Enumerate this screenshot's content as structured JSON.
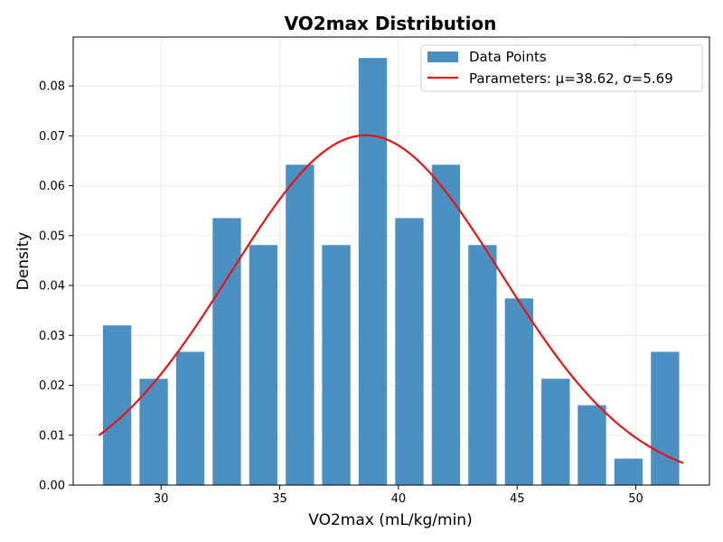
{
  "chart_data": {
    "type": "bar",
    "title": "VO2max Distribution",
    "xlabel": "VO2max (mL/kg/min)",
    "ylabel": "Density",
    "xlim": [
      26.3,
      53.1
    ],
    "ylim": [
      0,
      0.0898
    ],
    "x_ticks": [
      30,
      35,
      40,
      45,
      50
    ],
    "y_ticks": [
      0.0,
      0.01,
      0.02,
      0.03,
      0.04,
      0.05,
      0.06,
      0.07,
      0.08
    ],
    "grid": true,
    "legend_position": "top-right",
    "bin_width": 1.5385,
    "bar_fill_fraction": 0.8,
    "series": [
      {
        "name": "Data Points",
        "kind": "histogram",
        "color": "#4a90c2",
        "bin_centers": [
          28.15,
          29.69,
          31.23,
          32.77,
          34.31,
          35.85,
          37.38,
          38.92,
          40.46,
          42.0,
          43.54,
          45.08,
          46.62,
          48.15,
          49.69,
          51.23
        ],
        "values": [
          0.0321,
          0.0214,
          0.0268,
          0.0536,
          0.0482,
          0.0643,
          0.0482,
          0.0857,
          0.0536,
          0.0643,
          0.0482,
          0.0375,
          0.0214,
          0.0161,
          0.0054,
          0.0268
        ]
      },
      {
        "name": "Parameters: μ=38.62, σ=5.69",
        "kind": "normal-fit",
        "color": "#ee1111",
        "mu": 38.62,
        "sigma": 5.69,
        "x_range": [
          27.38,
          52.0
        ]
      }
    ]
  }
}
